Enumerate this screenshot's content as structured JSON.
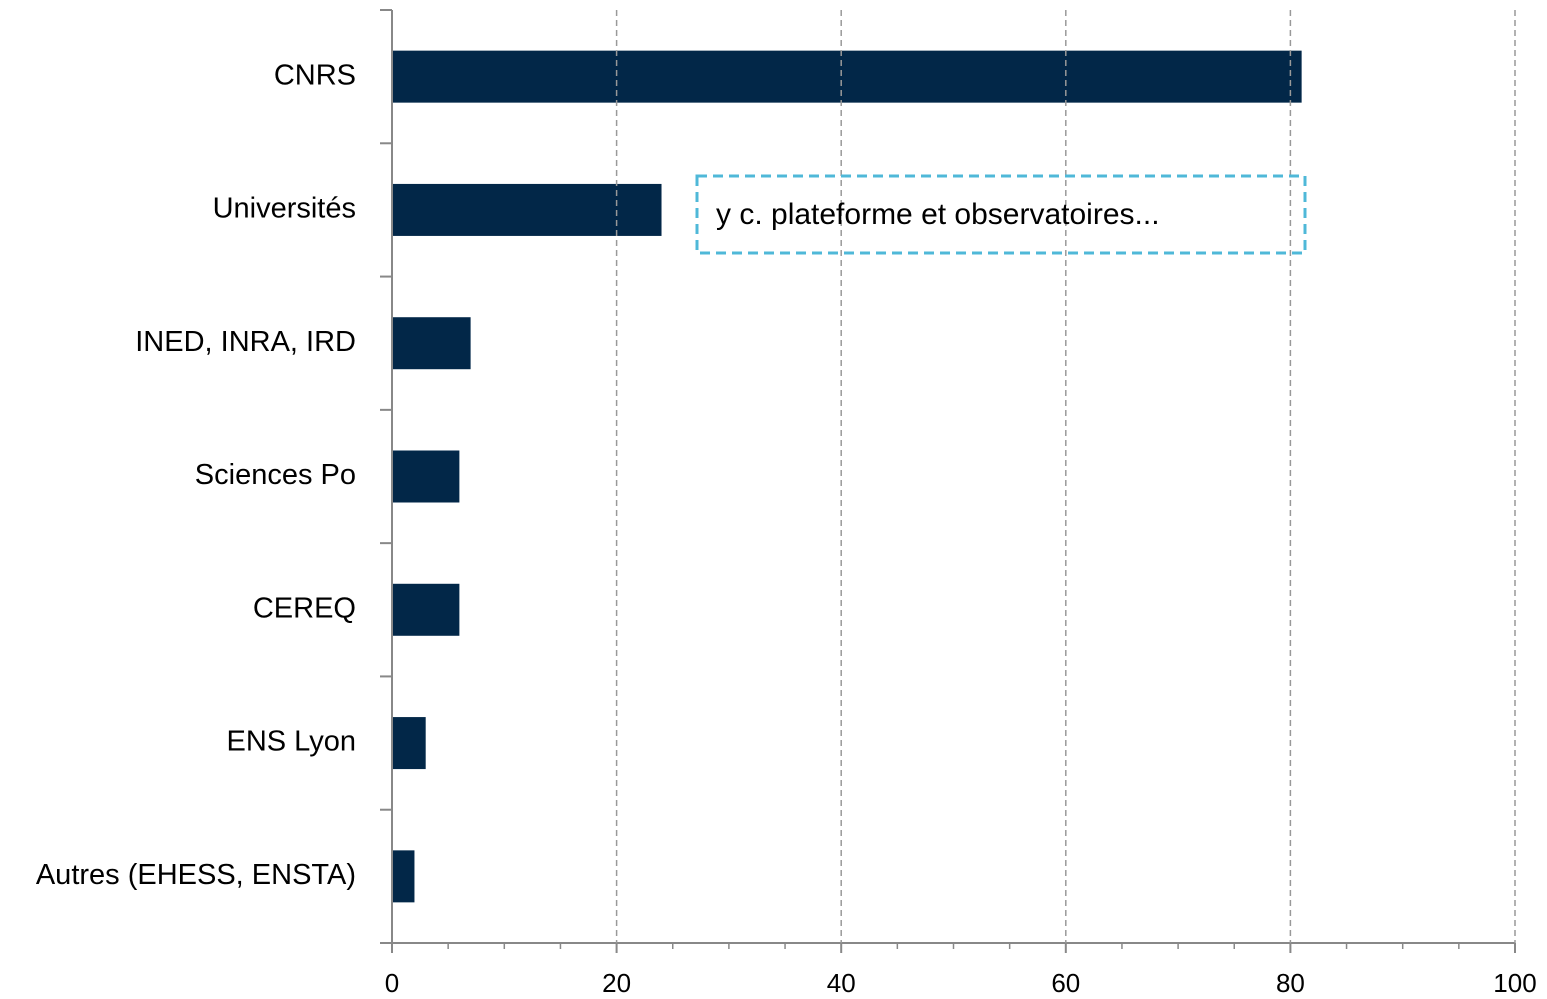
{
  "chart_data": {
    "type": "barh",
    "categories": [
      "CNRS",
      "Universités",
      "INED, INRA, IRD",
      "Sciences Po",
      "CEREQ",
      "ENS Lyon",
      "Autres (EHESS, ENSTA)"
    ],
    "values": [
      81,
      24,
      7,
      6,
      6,
      3,
      2
    ],
    "color": "#022748",
    "xlim": [
      0,
      100
    ],
    "xticks": [
      0,
      20,
      40,
      60,
      80,
      100
    ],
    "xminorticks": [
      5,
      10,
      15,
      25,
      30,
      35,
      45,
      50,
      55,
      65,
      70,
      75,
      85,
      90,
      95
    ],
    "grid": true,
    "annotation": "y c. plateforme et observatoires..."
  }
}
